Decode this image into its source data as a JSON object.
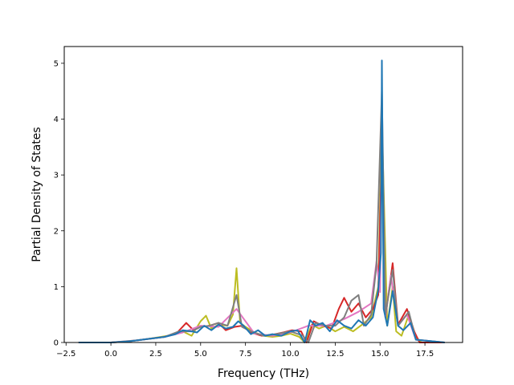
{
  "chart_data": {
    "type": "line",
    "title": "",
    "xlabel": "Frequency (THz)",
    "ylabel": "Partial Density of States",
    "xlim": [
      -2.6,
      19.6
    ],
    "ylim": [
      0,
      5.3
    ],
    "xticks": [
      -2.5,
      0.0,
      2.5,
      5.0,
      7.5,
      10.0,
      12.5,
      15.0,
      17.5
    ],
    "xtick_labels": [
      "−2.5",
      "0.0",
      "2.5",
      "5.0",
      "7.5",
      "10.0",
      "12.5",
      "15.0",
      "17.5"
    ],
    "yticks": [
      0,
      1,
      2,
      3,
      4,
      5
    ],
    "ytick_labels": [
      "0",
      "1",
      "2",
      "3",
      "4",
      "5"
    ],
    "grid": false,
    "legend": "none",
    "series": [
      {
        "color": "#bcbd22",
        "x": [
          -1.8,
          0.0,
          1.0,
          2.0,
          2.8,
          3.5,
          4.0,
          4.5,
          5.0,
          5.3,
          5.6,
          6.0,
          6.5,
          6.8,
          7.0,
          7.2,
          7.5,
          8.0,
          8.5,
          9.0,
          9.5,
          10.0,
          10.5,
          10.8,
          11.2,
          11.6,
          12.0,
          12.5,
          13.0,
          13.5,
          14.0,
          14.5,
          14.9,
          15.1,
          15.4,
          15.7,
          15.9,
          16.2,
          16.6,
          17.0,
          17.3,
          18.6
        ],
        "y": [
          0,
          0,
          0.02,
          0.06,
          0.1,
          0.14,
          0.2,
          0.12,
          0.38,
          0.48,
          0.25,
          0.32,
          0.3,
          0.5,
          1.33,
          0.35,
          0.28,
          0.18,
          0.12,
          0.1,
          0.12,
          0.16,
          0.1,
          0.0,
          0.32,
          0.25,
          0.3,
          0.2,
          0.28,
          0.2,
          0.32,
          0.45,
          1.0,
          3.95,
          0.3,
          1.0,
          0.2,
          0.12,
          0.5,
          0.1,
          0.0,
          0
        ]
      },
      {
        "color": "#d62728",
        "x": [
          -1.8,
          0.0,
          1.0,
          2.0,
          3.0,
          3.7,
          4.2,
          4.6,
          5.0,
          5.5,
          6.0,
          6.4,
          6.9,
          7.3,
          7.8,
          8.4,
          9.0,
          9.6,
          10.1,
          10.6,
          10.9,
          11.3,
          11.8,
          12.3,
          12.7,
          13.0,
          13.4,
          13.8,
          14.2,
          14.6,
          14.9,
          15.1,
          15.3,
          15.7,
          16.0,
          16.5,
          16.9,
          17.2,
          18.6
        ],
        "y": [
          0,
          0,
          0.02,
          0.06,
          0.1,
          0.18,
          0.35,
          0.22,
          0.28,
          0.3,
          0.35,
          0.22,
          0.28,
          0.3,
          0.18,
          0.12,
          0.14,
          0.18,
          0.22,
          0.2,
          0.0,
          0.38,
          0.3,
          0.25,
          0.6,
          0.8,
          0.55,
          0.7,
          0.45,
          0.6,
          0.85,
          3.5,
          0.45,
          1.42,
          0.32,
          0.6,
          0.2,
          0.0,
          0
        ]
      },
      {
        "color": "#e377c2",
        "x": [
          -1.8,
          0.0,
          1.5,
          3.0,
          4.0,
          5.0,
          6.0,
          7.0,
          8.0,
          9.0,
          10.0,
          11.0,
          12.0,
          13.0,
          13.8,
          14.5,
          14.8,
          15.0,
          15.1,
          15.3,
          15.6,
          16.0,
          16.5,
          17.0,
          18.6
        ],
        "y": [
          0,
          0,
          0.04,
          0.1,
          0.18,
          0.3,
          0.28,
          0.6,
          0.16,
          0.12,
          0.18,
          0.3,
          0.3,
          0.42,
          0.55,
          0.7,
          1.45,
          0.9,
          3.8,
          0.45,
          1.2,
          0.3,
          0.5,
          0.05,
          0
        ]
      },
      {
        "color": "#7f7f7f",
        "x": [
          -1.8,
          0.0,
          1.5,
          3.0,
          3.8,
          4.5,
          5.0,
          5.5,
          6.0,
          6.5,
          7.0,
          7.3,
          7.8,
          8.5,
          9.2,
          10.0,
          10.7,
          11.0,
          11.4,
          12.0,
          12.5,
          13.0,
          13.4,
          13.8,
          14.1,
          14.5,
          14.8,
          15.1,
          15.3,
          15.7,
          16.0,
          16.6,
          17.0,
          18.6
        ],
        "y": [
          0,
          0,
          0.04,
          0.1,
          0.2,
          0.2,
          0.28,
          0.3,
          0.35,
          0.3,
          0.85,
          0.28,
          0.2,
          0.12,
          0.15,
          0.2,
          0.12,
          0.0,
          0.35,
          0.3,
          0.3,
          0.45,
          0.75,
          0.85,
          0.3,
          0.5,
          1.4,
          4.5,
          0.5,
          1.3,
          0.3,
          0.55,
          0.05,
          0
        ]
      },
      {
        "color": "#1f77b4",
        "x": [
          -1.8,
          0.0,
          1.0,
          2.0,
          3.0,
          3.6,
          4.0,
          4.5,
          4.8,
          5.2,
          5.6,
          6.0,
          6.4,
          6.8,
          7.1,
          7.4,
          7.8,
          8.2,
          8.6,
          9.0,
          9.5,
          10.0,
          10.4,
          10.8,
          11.1,
          11.4,
          11.8,
          12.2,
          12.6,
          13.0,
          13.4,
          13.8,
          14.2,
          14.6,
          14.9,
          15.05,
          15.1,
          15.2,
          15.4,
          15.7,
          16.0,
          16.3,
          16.7,
          17.0,
          18.6
        ],
        "y": [
          0,
          0,
          0.02,
          0.06,
          0.1,
          0.15,
          0.22,
          0.2,
          0.18,
          0.3,
          0.22,
          0.32,
          0.25,
          0.28,
          0.38,
          0.3,
          0.15,
          0.22,
          0.12,
          0.15,
          0.12,
          0.2,
          0.22,
          0.0,
          0.4,
          0.3,
          0.35,
          0.2,
          0.4,
          0.3,
          0.25,
          0.4,
          0.3,
          0.45,
          0.95,
          1.6,
          5.05,
          0.6,
          0.3,
          0.92,
          0.3,
          0.22,
          0.35,
          0.05,
          0
        ]
      }
    ]
  }
}
